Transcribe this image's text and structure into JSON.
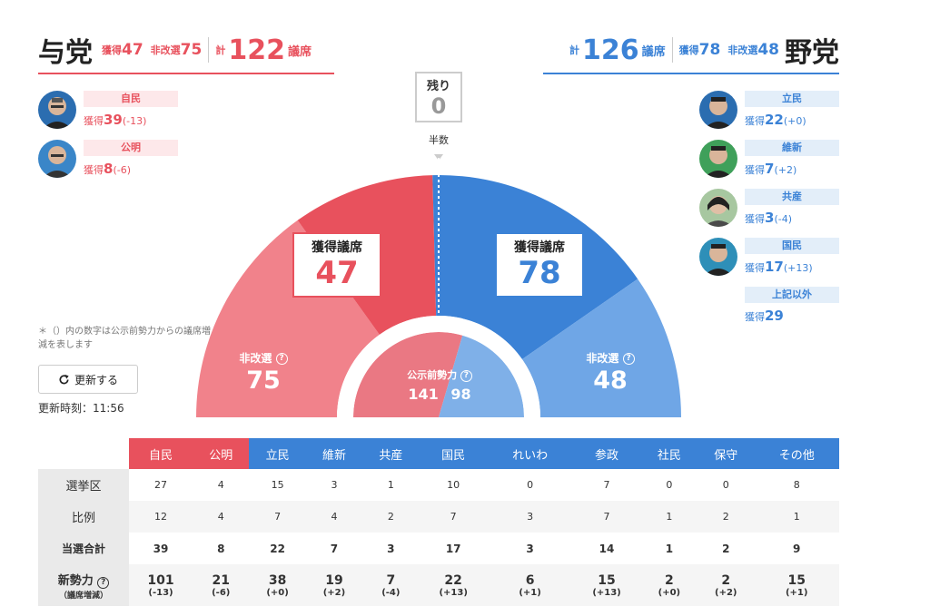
{
  "ruling": {
    "title": "与党",
    "won_label": "獲得",
    "won": "47",
    "nonre_label": "非改選",
    "nonre": "75",
    "total_label": "計",
    "total": "122",
    "seats_unit": "議席",
    "parties": [
      {
        "name": "自民",
        "won_label": "獲得",
        "won": "39",
        "diff": "(-13)"
      },
      {
        "name": "公明",
        "won_label": "獲得",
        "won": "8",
        "diff": "(-6)"
      }
    ]
  },
  "opposition": {
    "title": "野党",
    "won_label": "獲得",
    "won": "78",
    "nonre_label": "非改選",
    "nonre": "48",
    "total_label": "計",
    "total": "126",
    "seats_unit": "議席",
    "parties": [
      {
        "name": "立民",
        "won_label": "獲得",
        "won": "22",
        "diff": "(+0)"
      },
      {
        "name": "維新",
        "won_label": "獲得",
        "won": "7",
        "diff": "(+2)"
      },
      {
        "name": "共産",
        "won_label": "獲得",
        "won": "3",
        "diff": "(-4)"
      },
      {
        "name": "国民",
        "won_label": "獲得",
        "won": "17",
        "diff": "(+13)"
      },
      {
        "name": "上記以外",
        "won_label": "獲得",
        "won": "29",
        "diff": ""
      }
    ]
  },
  "remaining": {
    "label": "残り",
    "value": "0"
  },
  "half_label": "半数",
  "center": {
    "won_label": "獲得議席",
    "ruling_won": "47",
    "opp_won": "78",
    "nonre_label": "非改選",
    "ruling_nonre": "75",
    "opp_nonre": "48",
    "pre_label": "公示前勢力",
    "ruling_pre": "141",
    "opp_pre": "98",
    "q": "?"
  },
  "note": "＊（）内の数字は公示前勢力からの議席増減を表します",
  "refresh_label": "更新する",
  "updated": "更新時刻：11:56",
  "colors": {
    "ruling": "#e8515d",
    "ruling_light": "#f1828b",
    "ruling_pre": "#ea7883",
    "opp": "#3b82d6",
    "opp_light": "#6fa6e6",
    "opp_pre": "#7fb0e8"
  },
  "chart_data": {
    "type": "pie",
    "title": "",
    "series": [
      {
        "name": "獲得議席",
        "ruling": 47,
        "opposition": 78
      },
      {
        "name": "非改選",
        "ruling": 75,
        "opposition": 48
      },
      {
        "name": "公示前勢力",
        "ruling": 141,
        "opposition": 98
      }
    ]
  },
  "table": {
    "headers": [
      "自民",
      "公明",
      "立民",
      "維新",
      "共産",
      "国民",
      "れいわ",
      "参政",
      "社民",
      "保守",
      "その他"
    ],
    "header_colors": [
      "r",
      "r",
      "b",
      "b",
      "b",
      "b",
      "b",
      "b",
      "b",
      "b",
      "b"
    ],
    "rows": [
      {
        "label": "選挙区",
        "values": [
          "27",
          "4",
          "15",
          "3",
          "1",
          "10",
          "0",
          "7",
          "0",
          "0",
          "8"
        ]
      },
      {
        "label": "比例",
        "values": [
          "12",
          "4",
          "7",
          "4",
          "2",
          "7",
          "3",
          "7",
          "1",
          "2",
          "1"
        ]
      },
      {
        "label": "当選合計",
        "values": [
          "39",
          "8",
          "22",
          "7",
          "3",
          "17",
          "3",
          "14",
          "1",
          "2",
          "9"
        ]
      }
    ],
    "power_label": "新勢力",
    "power_sub": "（議席増減）",
    "power": [
      {
        "n": "101",
        "d": "(-13)"
      },
      {
        "n": "21",
        "d": "(-6)"
      },
      {
        "n": "38",
        "d": "(+0)"
      },
      {
        "n": "19",
        "d": "(+2)"
      },
      {
        "n": "7",
        "d": "(-4)"
      },
      {
        "n": "22",
        "d": "(+13)"
      },
      {
        "n": "6",
        "d": "(+1)"
      },
      {
        "n": "15",
        "d": "(+13)"
      },
      {
        "n": "2",
        "d": "(+0)"
      },
      {
        "n": "2",
        "d": "(+2)"
      },
      {
        "n": "15",
        "d": "(+1)"
      }
    ]
  }
}
